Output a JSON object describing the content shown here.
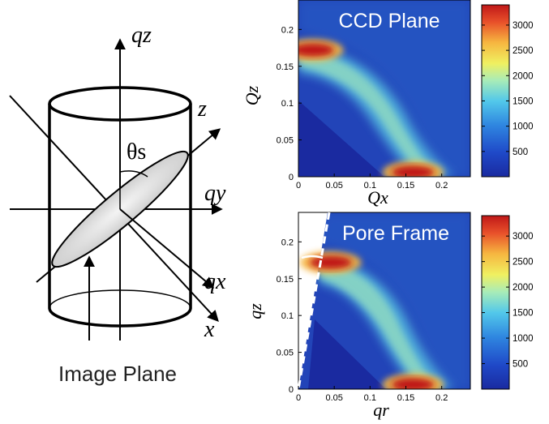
{
  "diagram": {
    "axis_qz": "qz",
    "axis_qy": "qy",
    "axis_qx": "qx",
    "axis_z": "z",
    "axis_x": "x",
    "angle_label": "θs",
    "caption": "Image Plane"
  },
  "colors": {
    "colormap": [
      "#1a2aa0",
      "#1f49c8",
      "#2f86e0",
      "#52c8ea",
      "#a8ecb8",
      "#f0f060",
      "#f6b640",
      "#e8502a",
      "#c01818"
    ]
  },
  "chart_data": [
    {
      "type": "heatmap",
      "title": "CCD Plane",
      "xlabel": "Qx",
      "ylabel": "Qz",
      "xlim": [
        0,
        0.24
      ],
      "ylim": [
        0,
        0.24
      ],
      "x_ticks": [
        "0",
        "0.05",
        "0.1",
        "0.15",
        "0.2"
      ],
      "y_ticks": [
        "0",
        "0.05",
        "0.1",
        "0.15",
        "0.2"
      ],
      "colorbar": {
        "min": 0,
        "max": 3400,
        "ticks": [
          "500",
          "1000",
          "1500",
          "2000",
          "2500",
          "3000"
        ]
      },
      "features": [
        {
          "name": "upper-lobe",
          "qx": 0.02,
          "qz": 0.172,
          "intensity": 3300
        },
        {
          "name": "lower-lobe",
          "qx": 0.16,
          "qz": 0.006,
          "intensity": 3400
        }
      ]
    },
    {
      "type": "heatmap",
      "title": "Pore Frame",
      "xlabel": "qr",
      "ylabel": "qz",
      "xlim": [
        0,
        0.24
      ],
      "ylim": [
        0,
        0.24
      ],
      "x_ticks": [
        "0",
        "0.05",
        "0.1",
        "0.15",
        "0.2"
      ],
      "y_ticks": [
        "0",
        "0.05",
        "0.1",
        "0.15",
        "0.2"
      ],
      "angle_label": "θs",
      "colorbar": {
        "min": 0,
        "max": 3400,
        "ticks": [
          "500",
          "1000",
          "1500",
          "2000",
          "2500",
          "3000"
        ]
      },
      "features": [
        {
          "name": "upper-lobe",
          "qx": 0.045,
          "qz": 0.172,
          "intensity": 3300
        },
        {
          "name": "lower-lobe",
          "qx": 0.16,
          "qz": 0.006,
          "intensity": 3400
        }
      ]
    }
  ]
}
